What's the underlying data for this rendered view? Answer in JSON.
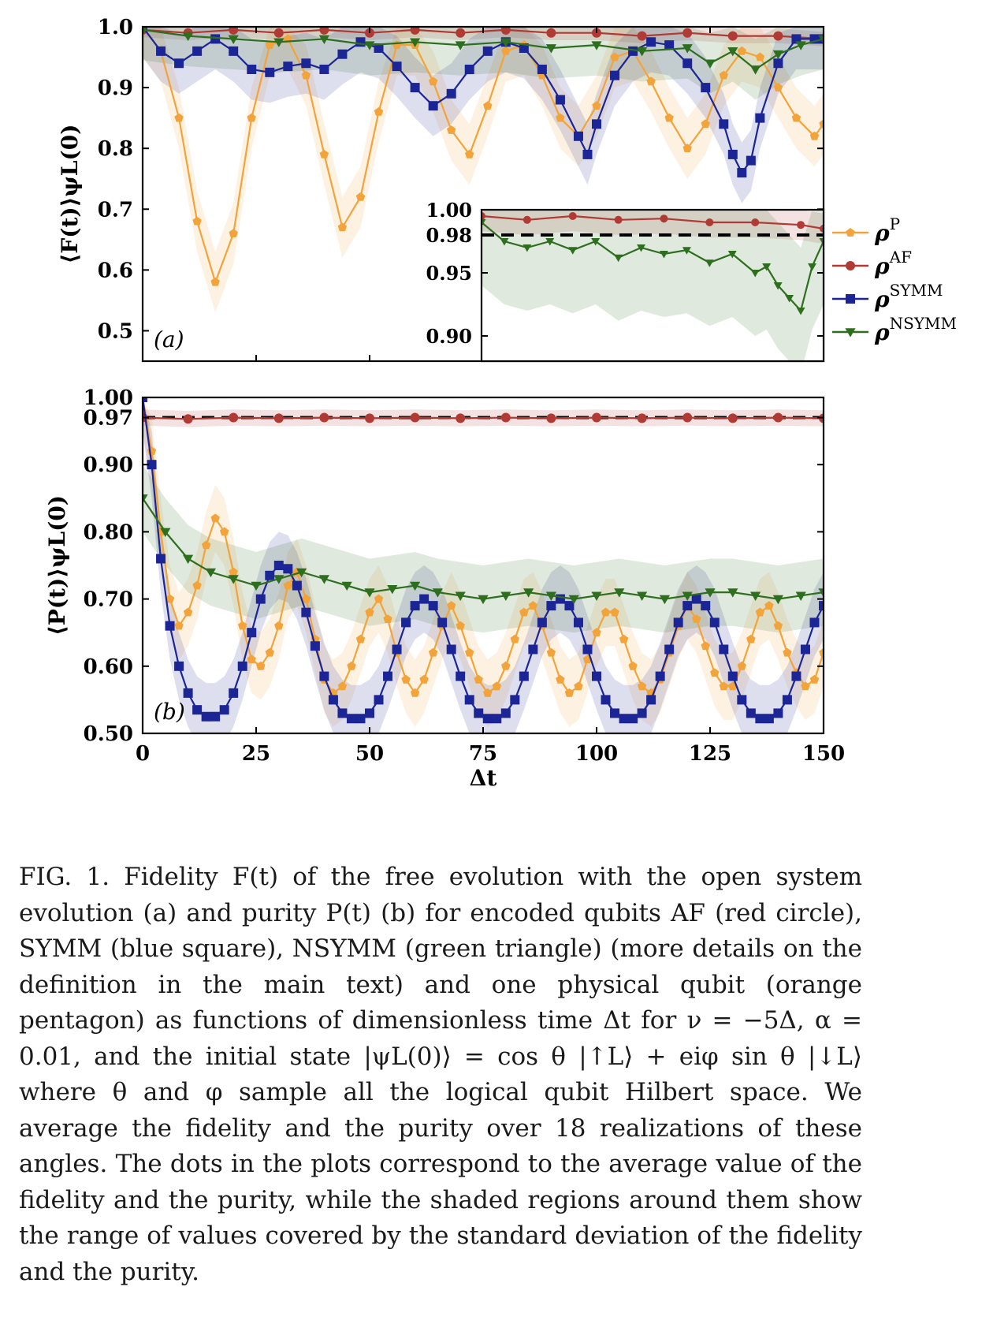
{
  "chart_data": [
    {
      "panel_label": "(a)",
      "type": "line",
      "ylabel": "⟨F(t)⟩ψL(0)",
      "xlim": [
        0,
        150
      ],
      "ylim": [
        0.45,
        1.0
      ],
      "yticks": [
        "0.5",
        "0.6",
        "0.7",
        "0.8",
        "0.9",
        "1.0"
      ],
      "ytick_values": [
        0.5,
        0.6,
        0.7,
        0.8,
        0.9,
        1.0
      ],
      "grid": false,
      "legend": "outside-right",
      "shaded_band": "standard deviation",
      "series": [
        {
          "name": "ρP",
          "color": "#f2a33a",
          "marker": "pentagon",
          "x": [
            0,
            4,
            8,
            12,
            16,
            20,
            24,
            28,
            32,
            36,
            40,
            44,
            48,
            52,
            56,
            60,
            64,
            68,
            72,
            76,
            80,
            84,
            88,
            92,
            96,
            100,
            104,
            108,
            112,
            116,
            120,
            124,
            128,
            132,
            136,
            140,
            144,
            148,
            150
          ],
          "y": [
            1.0,
            0.96,
            0.85,
            0.68,
            0.58,
            0.66,
            0.85,
            0.97,
            0.98,
            0.92,
            0.79,
            0.67,
            0.72,
            0.86,
            0.97,
            0.97,
            0.91,
            0.83,
            0.79,
            0.87,
            0.96,
            0.97,
            0.92,
            0.85,
            0.82,
            0.87,
            0.95,
            0.96,
            0.91,
            0.85,
            0.8,
            0.84,
            0.92,
            0.96,
            0.95,
            0.9,
            0.85,
            0.82,
            0.84
          ]
        },
        {
          "name": "ρAF",
          "color": "#b03a34",
          "marker": "circle",
          "x": [
            0,
            10,
            20,
            30,
            40,
            50,
            60,
            70,
            80,
            90,
            100,
            110,
            120,
            130,
            140,
            150
          ],
          "y": [
            0.995,
            0.99,
            0.995,
            0.99,
            0.995,
            0.99,
            0.995,
            0.99,
            0.995,
            0.99,
            0.99,
            0.985,
            0.99,
            0.985,
            0.985,
            0.98
          ]
        },
        {
          "name": "ρSYMM",
          "color": "#1c2596",
          "marker": "square",
          "x": [
            0,
            4,
            8,
            12,
            16,
            20,
            24,
            28,
            32,
            36,
            40,
            44,
            48,
            52,
            56,
            60,
            64,
            68,
            72,
            76,
            80,
            84,
            88,
            92,
            96,
            98,
            100,
            104,
            108,
            112,
            116,
            120,
            124,
            128,
            130,
            132,
            134,
            136,
            140,
            144,
            148,
            150
          ],
          "y": [
            1.0,
            0.96,
            0.94,
            0.96,
            0.98,
            0.96,
            0.93,
            0.925,
            0.935,
            0.94,
            0.93,
            0.955,
            0.975,
            0.965,
            0.935,
            0.9,
            0.87,
            0.89,
            0.93,
            0.96,
            0.975,
            0.965,
            0.93,
            0.88,
            0.82,
            0.79,
            0.84,
            0.92,
            0.96,
            0.975,
            0.97,
            0.94,
            0.9,
            0.84,
            0.79,
            0.76,
            0.78,
            0.85,
            0.94,
            0.98,
            0.98,
            0.98
          ]
        },
        {
          "name": "ρNSYMM",
          "color": "#2e6e1f",
          "marker": "triangle-down",
          "x": [
            0,
            10,
            20,
            30,
            40,
            50,
            60,
            70,
            80,
            90,
            100,
            110,
            120,
            125,
            130,
            135,
            140,
            145,
            150
          ],
          "y": [
            0.995,
            0.985,
            0.98,
            0.975,
            0.98,
            0.97,
            0.975,
            0.97,
            0.975,
            0.965,
            0.97,
            0.96,
            0.965,
            0.94,
            0.96,
            0.93,
            0.955,
            0.97,
            0.98
          ]
        }
      ],
      "inset": {
        "xlim": [
          0,
          150
        ],
        "ylim": [
          0.88,
          1.0
        ],
        "yticks": [
          "0.90",
          "0.95",
          "0.98",
          "1.00"
        ],
        "ytick_values": [
          0.9,
          0.95,
          0.98,
          1.0
        ],
        "dashed_line": 0.98,
        "series": [
          {
            "name": "ρAF",
            "x": [
              0,
              20,
              40,
              60,
              80,
              100,
              120,
              140,
              150
            ],
            "y": [
              0.995,
              0.992,
              0.995,
              0.992,
              0.993,
              0.99,
              0.99,
              0.988,
              0.985
            ]
          },
          {
            "name": "ρNSYMM",
            "x": [
              0,
              10,
              20,
              30,
              40,
              50,
              60,
              70,
              80,
              90,
              100,
              110,
              120,
              125,
              130,
              135,
              140,
              145,
              150
            ],
            "y": [
              0.99,
              0.975,
              0.97,
              0.975,
              0.968,
              0.975,
              0.962,
              0.97,
              0.965,
              0.968,
              0.958,
              0.965,
              0.95,
              0.955,
              0.94,
              0.93,
              0.92,
              0.955,
              0.975
            ]
          }
        ]
      }
    },
    {
      "panel_label": "(b)",
      "type": "line",
      "ylabel": "⟨P(t)⟩ψL(0)",
      "xlabel": "Δt",
      "xlim": [
        0,
        150
      ],
      "ylim": [
        0.5,
        1.0
      ],
      "xticks": [
        "0",
        "25",
        "50",
        "75",
        "100",
        "125",
        "150"
      ],
      "xtick_values": [
        0,
        25,
        50,
        75,
        100,
        125,
        150
      ],
      "yticks": [
        "0.50",
        "0.60",
        "0.70",
        "0.80",
        "0.90",
        "0.97",
        "1.00"
      ],
      "ytick_values": [
        0.5,
        0.6,
        0.7,
        0.8,
        0.9,
        0.97,
        1.0
      ],
      "dashed_line": 0.97,
      "grid": false,
      "shaded_band": "standard deviation",
      "series": [
        {
          "name": "ρP",
          "color": "#f2a33a",
          "marker": "pentagon",
          "x": [
            0,
            2,
            4,
            6,
            8,
            10,
            12,
            14,
            16,
            18,
            20,
            22,
            24,
            26,
            28,
            30,
            32,
            34,
            36,
            38,
            40,
            42,
            44,
            46,
            48,
            50,
            52,
            54,
            56,
            58,
            60,
            62,
            64,
            66,
            68,
            70,
            72,
            74,
            76,
            78,
            80,
            82,
            84,
            86,
            88,
            90,
            92,
            94,
            96,
            98,
            100,
            102,
            104,
            106,
            108,
            110,
            112,
            114,
            116,
            118,
            120,
            122,
            124,
            126,
            128,
            130,
            132,
            134,
            136,
            138,
            140,
            142,
            144,
            146,
            148,
            150
          ],
          "y": [
            1.0,
            0.92,
            0.8,
            0.7,
            0.66,
            0.68,
            0.72,
            0.78,
            0.82,
            0.8,
            0.74,
            0.66,
            0.61,
            0.6,
            0.62,
            0.66,
            0.72,
            0.74,
            0.7,
            0.64,
            0.58,
            0.56,
            0.57,
            0.6,
            0.64,
            0.68,
            0.7,
            0.67,
            0.62,
            0.58,
            0.56,
            0.58,
            0.62,
            0.66,
            0.69,
            0.66,
            0.62,
            0.58,
            0.56,
            0.57,
            0.6,
            0.64,
            0.68,
            0.69,
            0.66,
            0.62,
            0.58,
            0.56,
            0.57,
            0.61,
            0.65,
            0.68,
            0.68,
            0.64,
            0.6,
            0.57,
            0.56,
            0.58,
            0.62,
            0.66,
            0.69,
            0.67,
            0.63,
            0.59,
            0.57,
            0.57,
            0.6,
            0.64,
            0.68,
            0.69,
            0.66,
            0.62,
            0.59,
            0.57,
            0.58,
            0.62
          ]
        },
        {
          "name": "ρAF",
          "color": "#b03a34",
          "marker": "circle",
          "x": [
            0,
            10,
            20,
            30,
            40,
            50,
            60,
            70,
            80,
            90,
            100,
            110,
            120,
            130,
            140,
            150
          ],
          "y": [
            0.97,
            0.968,
            0.97,
            0.969,
            0.97,
            0.969,
            0.97,
            0.969,
            0.97,
            0.969,
            0.97,
            0.969,
            0.97,
            0.969,
            0.97,
            0.969
          ]
        },
        {
          "name": "ρSYMM",
          "color": "#1c2596",
          "marker": "square",
          "x": [
            0,
            2,
            4,
            6,
            8,
            10,
            12,
            14,
            16,
            18,
            20,
            22,
            24,
            26,
            28,
            30,
            32,
            34,
            36,
            38,
            40,
            42,
            44,
            46,
            48,
            50,
            52,
            54,
            56,
            58,
            60,
            62,
            64,
            66,
            68,
            70,
            72,
            74,
            76,
            78,
            80,
            82,
            84,
            86,
            88,
            90,
            92,
            94,
            96,
            98,
            100,
            102,
            104,
            106,
            108,
            110,
            112,
            114,
            116,
            118,
            120,
            122,
            124,
            126,
            128,
            130,
            132,
            134,
            136,
            138,
            140,
            142,
            144,
            146,
            148,
            150
          ],
          "y": [
            1.0,
            0.9,
            0.76,
            0.66,
            0.6,
            0.56,
            0.535,
            0.525,
            0.525,
            0.535,
            0.56,
            0.6,
            0.65,
            0.7,
            0.735,
            0.75,
            0.745,
            0.72,
            0.68,
            0.63,
            0.585,
            0.55,
            0.53,
            0.522,
            0.522,
            0.53,
            0.55,
            0.585,
            0.625,
            0.665,
            0.69,
            0.7,
            0.69,
            0.665,
            0.625,
            0.585,
            0.55,
            0.53,
            0.522,
            0.522,
            0.53,
            0.55,
            0.585,
            0.625,
            0.665,
            0.69,
            0.7,
            0.69,
            0.665,
            0.625,
            0.585,
            0.55,
            0.53,
            0.522,
            0.522,
            0.53,
            0.55,
            0.585,
            0.625,
            0.665,
            0.69,
            0.7,
            0.69,
            0.665,
            0.625,
            0.585,
            0.55,
            0.53,
            0.522,
            0.522,
            0.53,
            0.55,
            0.585,
            0.625,
            0.665,
            0.69
          ]
        },
        {
          "name": "ρNSYMM",
          "color": "#2e6e1f",
          "marker": "triangle-down",
          "x": [
            0,
            5,
            10,
            15,
            20,
            25,
            30,
            35,
            40,
            45,
            50,
            55,
            60,
            65,
            70,
            75,
            80,
            85,
            90,
            95,
            100,
            105,
            110,
            115,
            120,
            125,
            130,
            135,
            140,
            145,
            150
          ],
          "y": [
            0.85,
            0.8,
            0.76,
            0.74,
            0.73,
            0.72,
            0.73,
            0.74,
            0.73,
            0.72,
            0.71,
            0.715,
            0.72,
            0.71,
            0.705,
            0.7,
            0.705,
            0.71,
            0.705,
            0.7,
            0.705,
            0.71,
            0.705,
            0.7,
            0.705,
            0.71,
            0.71,
            0.705,
            0.7,
            0.705,
            0.71
          ]
        }
      ]
    }
  ],
  "legend": {
    "items": [
      {
        "base": "ρ",
        "sup": "P",
        "color": "#f2a33a",
        "marker": "pentagon"
      },
      {
        "base": "ρ",
        "sup": "AF",
        "color": "#b03a34",
        "marker": "circle"
      },
      {
        "base": "ρ",
        "sup": "SYMM",
        "color": "#1c2596",
        "marker": "square"
      },
      {
        "base": "ρ",
        "sup": "NSYMM",
        "color": "#2e6e1f",
        "marker": "triangle-down"
      }
    ]
  },
  "caption": {
    "text": "FIG. 1.  Fidelity F(t) of the free evolution with the open system evolution (a) and purity P(t) (b) for encoded qubits AF (red circle), SYMM (blue square), NSYMM (green triangle) (more details on the definition in the main text) and one physical qubit (orange pentagon) as functions of dimensionless time Δt for ν = −5Δ, α = 0.01, and the initial state |ψL(0)⟩ = cos θ |↑L⟩ + eiφ sin θ |↓L⟩ where θ and φ sample all the logical qubit Hilbert space. We average the fidelity and the purity over 18 realizations of these angles. The dots in the plots correspond to the average value of the fidelity and the purity, while the shaded regions around them show the range of values covered by the standard deviation of the fidelity and the purity."
  }
}
